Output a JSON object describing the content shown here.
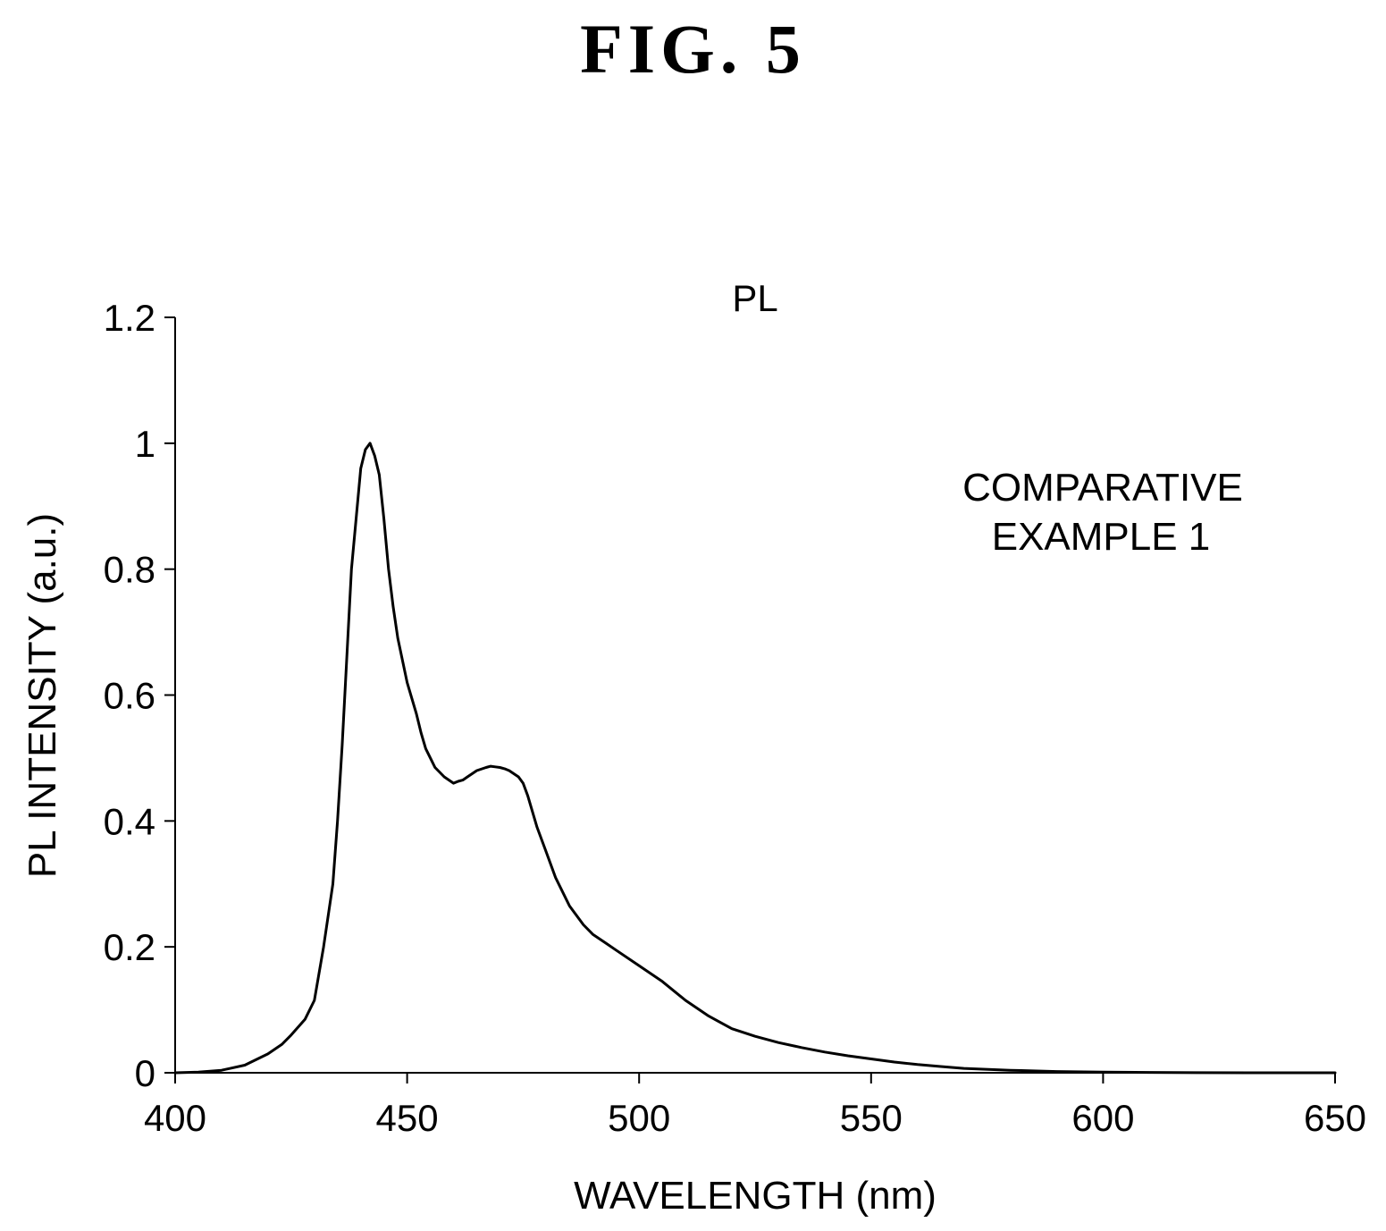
{
  "figure_label": "FIG. 5",
  "chart_data": {
    "type": "line",
    "title": "PL",
    "xlabel": "WAVELENGTH (nm)",
    "ylabel": "PL INTENSITY (a.u.)",
    "xlim": [
      400,
      650
    ],
    "ylim": [
      0,
      1.2
    ],
    "x_ticks": [
      400,
      450,
      500,
      550,
      600,
      650
    ],
    "x_tick_labels": [
      "400",
      "450",
      "500",
      "550",
      "600",
      "650"
    ],
    "y_ticks": [
      0,
      0.2,
      0.4,
      0.6,
      0.8,
      1,
      1.2
    ],
    "y_tick_labels": [
      "0",
      "0.2",
      "0.4",
      "0.6",
      "0.8",
      "1",
      "1.2"
    ],
    "grid": false,
    "annotations": [
      {
        "lines": [
          "COMPARATIVE",
          "EXAMPLE 1"
        ]
      }
    ],
    "series": [
      {
        "color": "#000000",
        "x": [
          400,
          405,
          410,
          415,
          420,
          423,
          425,
          428,
          430,
          432,
          434,
          435,
          436,
          437,
          438,
          439,
          440,
          441,
          442,
          443,
          444,
          445,
          446,
          447,
          448,
          450,
          452,
          453,
          454,
          455,
          456,
          458,
          460,
          461,
          462,
          463,
          464,
          465,
          467,
          468,
          469,
          470,
          471,
          472,
          474,
          475,
          476,
          478,
          480,
          482,
          484,
          485,
          488,
          490,
          493,
          495,
          500,
          505,
          510,
          515,
          520,
          525,
          530,
          535,
          540,
          545,
          550,
          555,
          560,
          565,
          570,
          580,
          590,
          600,
          610,
          620,
          650
        ],
        "y": [
          0,
          0.001,
          0.004,
          0.012,
          0.03,
          0.045,
          0.06,
          0.085,
          0.115,
          0.2,
          0.3,
          0.4,
          0.52,
          0.66,
          0.8,
          0.88,
          0.96,
          0.99,
          1.0,
          0.98,
          0.95,
          0.88,
          0.8,
          0.74,
          0.69,
          0.62,
          0.57,
          0.54,
          0.515,
          0.5,
          0.485,
          0.47,
          0.46,
          0.463,
          0.465,
          0.47,
          0.475,
          0.48,
          0.485,
          0.487,
          0.486,
          0.485,
          0.483,
          0.48,
          0.47,
          0.46,
          0.44,
          0.39,
          0.35,
          0.31,
          0.28,
          0.265,
          0.235,
          0.22,
          0.205,
          0.195,
          0.17,
          0.145,
          0.115,
          0.09,
          0.07,
          0.058,
          0.048,
          0.04,
          0.033,
          0.027,
          0.022,
          0.017,
          0.013,
          0.01,
          0.007,
          0.004,
          0.002,
          0.001,
          0.0005,
          0.0002,
          0
        ]
      }
    ]
  }
}
